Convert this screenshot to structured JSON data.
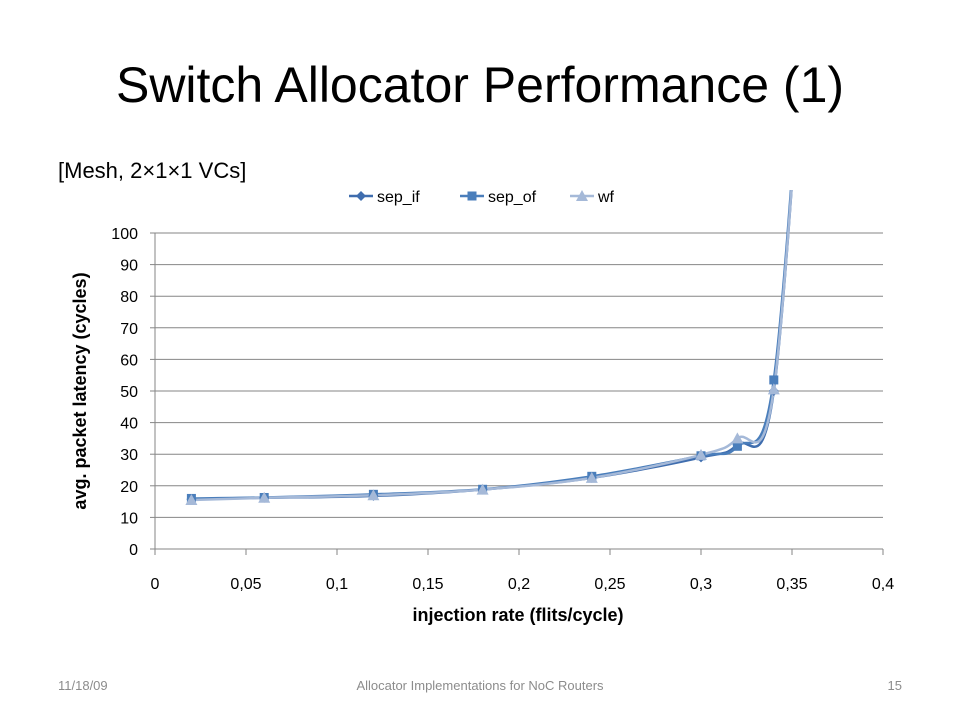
{
  "slide": {
    "title": "Switch Allocator Performance (1)",
    "subtitle": "[Mesh, 2×1×1 VCs]"
  },
  "footer": {
    "date": "11/18/09",
    "center": "Allocator Implementations for NoC Routers",
    "page": "15"
  },
  "chart_data": {
    "type": "line",
    "title": "",
    "xlabel": "injection rate (flits/cycle)",
    "ylabel": "avg. packet latency (cycles)",
    "xlim": [
      0,
      0.4
    ],
    "ylim": [
      0,
      100
    ],
    "xticks": [
      "0",
      "0,05",
      "0,1",
      "0,15",
      "0,2",
      "0,25",
      "0,3",
      "0,35",
      "0,4"
    ],
    "yticks": [
      "0",
      "10",
      "20",
      "30",
      "40",
      "50",
      "60",
      "70",
      "80",
      "90",
      "100"
    ],
    "grid": true,
    "legend_position": "top",
    "series": [
      {
        "name": "sep_if",
        "color": "#3f6dae",
        "marker": "diamond",
        "x": [
          0.02,
          0.06,
          0.12,
          0.18,
          0.24,
          0.3,
          0.32,
          0.34,
          0.36
        ],
        "y": [
          15.8,
          16.2,
          16.8,
          18.8,
          22.5,
          29,
          33,
          50,
          200
        ]
      },
      {
        "name": "sep_of",
        "color": "#4a7ebb",
        "marker": "square",
        "x": [
          0.02,
          0.06,
          0.12,
          0.18,
          0.24,
          0.3,
          0.32,
          0.34,
          0.36
        ],
        "y": [
          16,
          16.3,
          17.3,
          18.9,
          23,
          29.5,
          32.5,
          53.5,
          200
        ]
      },
      {
        "name": "wf",
        "color": "#a5b9d8",
        "marker": "triangle",
        "x": [
          0.02,
          0.06,
          0.12,
          0.18,
          0.24,
          0.3,
          0.32,
          0.34,
          0.36
        ],
        "y": [
          15.5,
          16.2,
          17,
          18.8,
          22.5,
          29.8,
          35,
          50.5,
          200
        ]
      }
    ]
  }
}
